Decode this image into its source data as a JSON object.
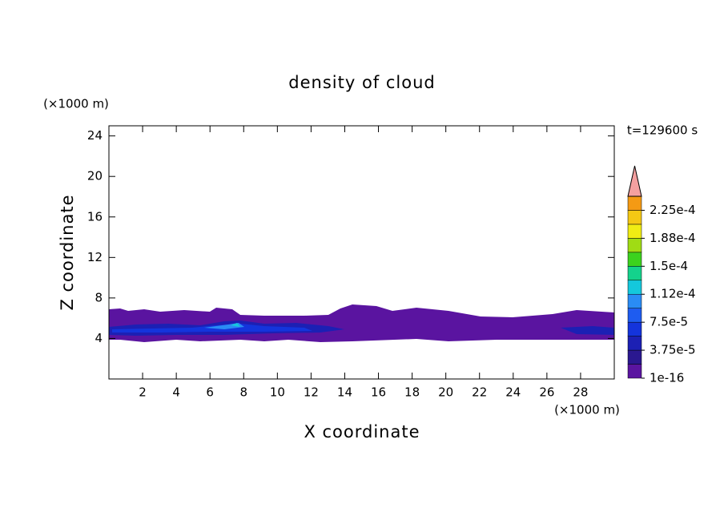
{
  "chart_data": {
    "type": "contour",
    "title": "density of cloud",
    "x_label": "X coordinate",
    "y_label": "Z coordinate",
    "x_unit": "(×1000 m)",
    "y_unit": "(×1000 m)",
    "time_label": "t=129600 s",
    "xlim": [
      0,
      30
    ],
    "ylim": [
      0,
      25
    ],
    "xticks": [
      2,
      4,
      6,
      8,
      10,
      12,
      14,
      16,
      18,
      20,
      22,
      24,
      26,
      28
    ],
    "yticks": [
      4,
      8,
      12,
      16,
      20,
      24
    ],
    "colorbar": {
      "range": [
        1e-16,
        0.00024375
      ],
      "colors": [
        "#5a14a0",
        "#2a1890",
        "#1c20b4",
        "#1434dc",
        "#1e5cf0",
        "#2a8cf4",
        "#14c8dc",
        "#14d28c",
        "#3cd21e",
        "#a0dc14",
        "#f0ec14",
        "#f4c814",
        "#f49a14",
        "#f06e14",
        "#e63c14",
        "#e01414"
      ],
      "levels": [
        1e-16,
        1.875e-05,
        3.75e-05,
        5.625e-05,
        7.5e-05,
        9.375e-05,
        0.0001125,
        0.00013125,
        0.00015,
        0.00016875,
        0.0001875,
        0.00020625,
        0.000225,
        0.00024375
      ],
      "extend_color": "#f4a0a0",
      "ticks": [
        {
          "value": 1e-16,
          "label": "1e-16"
        },
        {
          "value": 3.75e-05,
          "label": "3.75e-5"
        },
        {
          "value": 7.5e-05,
          "label": "7.5e-5"
        },
        {
          "value": 0.0001125,
          "label": "1.12e-4"
        },
        {
          "value": 0.00015,
          "label": "1.5e-4"
        },
        {
          "value": 0.0001875,
          "label": "1.88e-4"
        },
        {
          "value": 0.000225,
          "label": "2.25e-4"
        }
      ]
    }
  }
}
